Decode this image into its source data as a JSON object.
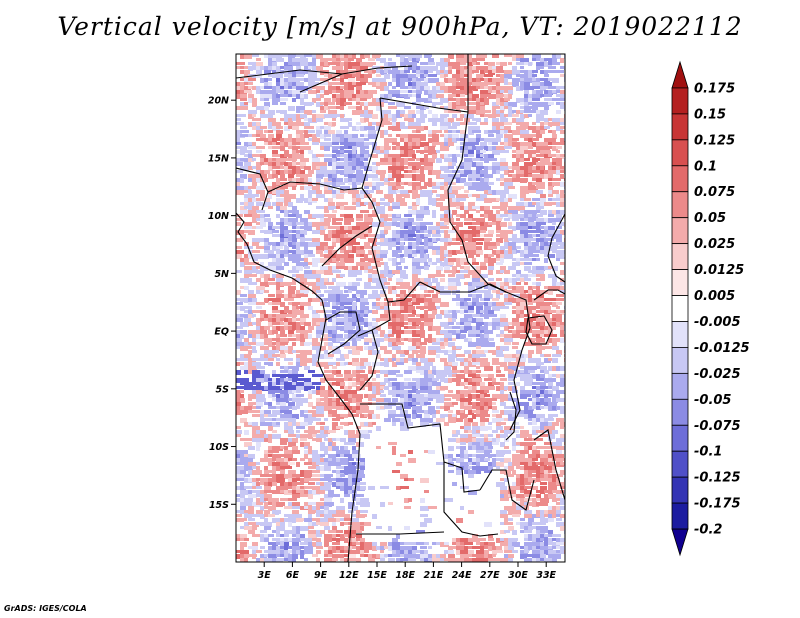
{
  "title": "Vertical velocity [m/s] at 900hPa, VT: 2019022112",
  "credit": "GrADS: IGES/COLA",
  "map": {
    "lon_range": [
      0,
      35
    ],
    "lat_range": [
      -20,
      24
    ],
    "lat_ticks": [
      {
        "value": 20,
        "label": "20N"
      },
      {
        "value": 15,
        "label": "15N"
      },
      {
        "value": 10,
        "label": "10N"
      },
      {
        "value": 5,
        "label": "5N"
      },
      {
        "value": 0,
        "label": "EQ"
      },
      {
        "value": -5,
        "label": "5S"
      },
      {
        "value": -10,
        "label": "10S"
      },
      {
        "value": -15,
        "label": "15S"
      }
    ],
    "lon_ticks": [
      {
        "value": 3,
        "label": "3E"
      },
      {
        "value": 6,
        "label": "6E"
      },
      {
        "value": 9,
        "label": "9E"
      },
      {
        "value": 12,
        "label": "12E"
      },
      {
        "value": 15,
        "label": "15E"
      },
      {
        "value": 18,
        "label": "18E"
      },
      {
        "value": 21,
        "label": "21E"
      },
      {
        "value": 24,
        "label": "24E"
      },
      {
        "value": 27,
        "label": "27E"
      },
      {
        "value": 30,
        "label": "30E"
      },
      {
        "value": 33,
        "label": "33E"
      }
    ]
  },
  "colorbar": {
    "labels": [
      "0.175",
      "0.15",
      "0.125",
      "0.1",
      "0.075",
      "0.05",
      "0.025",
      "0.0125",
      "0.005",
      "-0.005",
      "-0.0125",
      "-0.025",
      "-0.05",
      "-0.075",
      "-0.1",
      "-0.125",
      "-0.175",
      "-0.2"
    ],
    "colors": [
      "#a01010",
      "#b42020",
      "#c83535",
      "#d85050",
      "#e36a6a",
      "#ec8a8a",
      "#f3abab",
      "#f8cccc",
      "#fde6e6",
      "#ffffff",
      "#e2e2fa",
      "#c8c8f4",
      "#aaaaee",
      "#8b8be4",
      "#6d6dd8",
      "#5050c8",
      "#3434b4",
      "#1c1ca0",
      "#100090"
    ]
  }
}
